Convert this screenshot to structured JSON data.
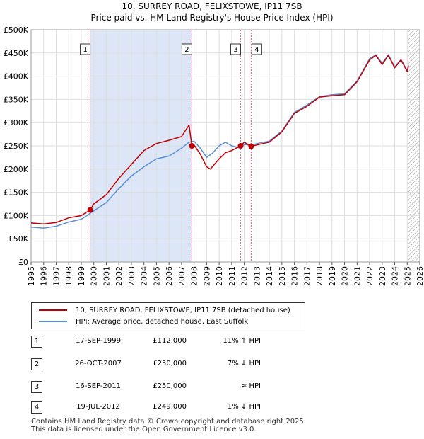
{
  "header": {
    "title": "10, SURREY ROAD, FELIXSTOWE, IP11 7SB",
    "subtitle": "Price paid vs. HM Land Registry's House Price Index (HPI)"
  },
  "colors": {
    "property_line": "#c00000",
    "hpi_line": "#5b8ed6",
    "shade": "#dde6f7",
    "grid": "#dddddd",
    "marker_line": "#e06080"
  },
  "chart_data": {
    "type": "line",
    "title": "10, SURREY ROAD, FELIXSTOWE, IP11 7SB",
    "subtitle": "Price paid vs. HM Land Registry's House Price Index (HPI)",
    "xlabel": "",
    "ylabel": "",
    "xlim": [
      1995,
      2026
    ],
    "ylim": [
      0,
      500000
    ],
    "x_ticks": [
      "1995",
      "1996",
      "1997",
      "1998",
      "1999",
      "2000",
      "2001",
      "2002",
      "2003",
      "2004",
      "2005",
      "2006",
      "2007",
      "2008",
      "2009",
      "2010",
      "2011",
      "2012",
      "2013",
      "2014",
      "2015",
      "2016",
      "2017",
      "2018",
      "2019",
      "2020",
      "2021",
      "2022",
      "2023",
      "2024",
      "2025",
      "2026"
    ],
    "y_ticks": [
      {
        "value": 0,
        "label": "£0"
      },
      {
        "value": 50000,
        "label": "£50K"
      },
      {
        "value": 100000,
        "label": "£100K"
      },
      {
        "value": 150000,
        "label": "£150K"
      },
      {
        "value": 200000,
        "label": "£200K"
      },
      {
        "value": 250000,
        "label": "£250K"
      },
      {
        "value": 300000,
        "label": "£300K"
      },
      {
        "value": 350000,
        "label": "£350K"
      },
      {
        "value": 400000,
        "label": "£400K"
      },
      {
        "value": 450000,
        "label": "£450K"
      },
      {
        "value": 500000,
        "label": "£500K"
      }
    ],
    "grid": true,
    "shaded_range": [
      1999.71,
      2007.82
    ],
    "forecast_start": 2025.1,
    "series": [
      {
        "name": "10, SURREY ROAD, FELIXSTOWE, IP11 7SB (detached house)",
        "x": [
          1995,
          1996,
          1997,
          1998,
          1999,
          1999.71,
          2000,
          2001,
          2002,
          2003,
          2004,
          2005,
          2006,
          2007,
          2007.6,
          2007.82,
          2008,
          2008.5,
          2009,
          2009.3,
          2010,
          2010.5,
          2011,
          2011.71,
          2012,
          2012.55,
          2013,
          2014,
          2015,
          2016,
          2017,
          2018,
          2019,
          2020,
          2021,
          2022,
          2022.5,
          2023,
          2023.5,
          2024,
          2024.5,
          2025,
          2025.1
        ],
        "values": [
          84000,
          82000,
          85000,
          95000,
          100000,
          112000,
          125000,
          145000,
          180000,
          210000,
          240000,
          255000,
          262000,
          270000,
          295000,
          250000,
          252000,
          232000,
          205000,
          200000,
          222000,
          235000,
          240000,
          250000,
          258000,
          249000,
          252000,
          258000,
          280000,
          320000,
          335000,
          355000,
          358000,
          360000,
          388000,
          435000,
          445000,
          425000,
          445000,
          418000,
          435000,
          410000,
          422000
        ]
      },
      {
        "name": "HPI: Average price, detached house, East Suffolk",
        "x": [
          1995,
          1996,
          1997,
          1998,
          1999,
          2000,
          2001,
          2002,
          2003,
          2004,
          2005,
          2006,
          2007,
          2007.6,
          2008,
          2008.5,
          2009,
          2009.5,
          2010,
          2010.5,
          2011,
          2011.71,
          2012,
          2012.55,
          2013,
          2014,
          2015,
          2016,
          2017,
          2018,
          2019,
          2020,
          2021,
          2022,
          2022.5,
          2023,
          2023.5,
          2024,
          2024.5,
          2025,
          2025.1
        ],
        "values": [
          75000,
          73000,
          77000,
          86000,
          92000,
          110000,
          128000,
          158000,
          185000,
          205000,
          222000,
          228000,
          245000,
          258000,
          260000,
          245000,
          225000,
          235000,
          250000,
          258000,
          250000,
          245000,
          253000,
          251000,
          255000,
          260000,
          282000,
          322000,
          338000,
          356000,
          360000,
          362000,
          390000,
          438000,
          446000,
          428000,
          446000,
          420000,
          436000,
          412000,
          424000
        ]
      }
    ],
    "sales": [
      {
        "id": "1",
        "x": 1999.71,
        "value": 112000
      },
      {
        "id": "2",
        "x": 2007.82,
        "value": 250000
      },
      {
        "id": "3",
        "x": 2011.71,
        "value": 250000
      },
      {
        "id": "4",
        "x": 2012.55,
        "value": 249000
      }
    ]
  },
  "legend": {
    "property_label": "10, SURREY ROAD, FELIXSTOWE, IP11 7SB (detached house)",
    "hpi_label": "HPI: Average price, detached house, East Suffolk"
  },
  "sales_table": [
    {
      "num": "1",
      "date": "17-SEP-1999",
      "price": "£112,000",
      "hpi": "11% ↑ HPI"
    },
    {
      "num": "2",
      "date": "26-OCT-2007",
      "price": "£250,000",
      "hpi": "7% ↓ HPI"
    },
    {
      "num": "3",
      "date": "16-SEP-2011",
      "price": "£250,000",
      "hpi": "≈ HPI"
    },
    {
      "num": "4",
      "date": "19-JUL-2012",
      "price": "£249,000",
      "hpi": "1% ↓ HPI"
    }
  ],
  "footer": {
    "line1": "Contains HM Land Registry data © Crown copyright and database right 2025.",
    "line2": "This data is licensed under the Open Government Licence v3.0."
  }
}
